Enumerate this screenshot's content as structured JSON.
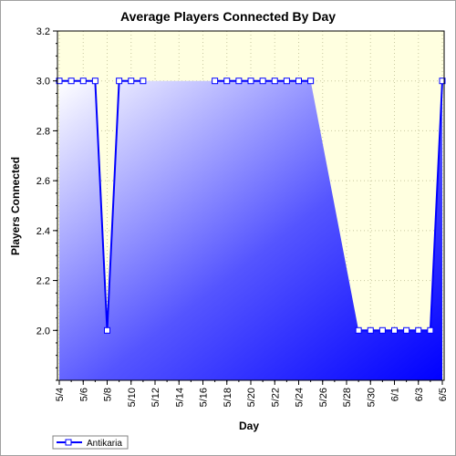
{
  "chart_data": {
    "type": "area",
    "title": "Average Players Connected By Day",
    "xlabel": "Day",
    "ylabel": "Players Connected",
    "x_tick_labels": [
      "5/4",
      "5/6",
      "5/8",
      "5/10",
      "5/12",
      "5/14",
      "5/16",
      "5/18",
      "5/20",
      "5/22",
      "5/24",
      "5/26",
      "5/28",
      "5/30",
      "6/1",
      "6/3",
      "6/5"
    ],
    "y_tick_labels": [
      "2.0",
      "2.2",
      "2.4",
      "2.6",
      "2.8",
      "3.0",
      "3.2"
    ],
    "ylim": [
      1.8,
      3.2
    ],
    "x_range_days": [
      0,
      32
    ],
    "grid": true,
    "legend_position": "bottom-left",
    "colors": {
      "plot_background": "#ffffe0",
      "line": "#0000ff",
      "fill_light": "#ffffff",
      "fill_dark": "#0000ff",
      "grid": "#c8c8a0"
    },
    "series": [
      {
        "name": "Antikaria",
        "x": [
          "5/4",
          "5/5",
          "5/6",
          "5/7",
          "5/8",
          "5/9",
          "5/10",
          "5/11",
          "5/17",
          "5/18",
          "5/19",
          "5/20",
          "5/21",
          "5/22",
          "5/23",
          "5/24",
          "5/25",
          "5/29",
          "5/30",
          "5/31",
          "6/1",
          "6/2",
          "6/3",
          "6/4",
          "6/5"
        ],
        "x_day": [
          0,
          1,
          2,
          3,
          4,
          5,
          6,
          7,
          13,
          14,
          15,
          16,
          17,
          18,
          19,
          20,
          21,
          25,
          26,
          27,
          28,
          29,
          30,
          31,
          32
        ],
        "values": [
          3,
          3,
          3,
          3,
          2,
          3,
          3,
          3,
          3,
          3,
          3,
          3,
          3,
          3,
          3,
          3,
          3,
          2,
          2,
          2,
          2,
          2,
          2,
          2,
          3
        ]
      }
    ]
  }
}
